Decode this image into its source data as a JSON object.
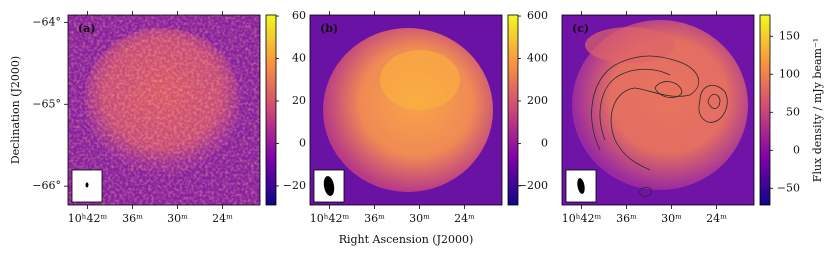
{
  "chart_data": [
    {
      "type": "image",
      "panel_label": "(a)",
      "xlim": [
        44.6,
        19.0
      ],
      "xticks": [
        {
          "value": 42,
          "label": "10ʰ42ᵐ"
        },
        {
          "value": 36,
          "label": "36ᵐ"
        },
        {
          "value": 30,
          "label": "30ᵐ"
        },
        {
          "value": 24,
          "label": "24ᵐ"
        }
      ],
      "ylim": [
        -66.23,
        -63.91
      ],
      "yticks": [
        {
          "value": -64,
          "label": "−64°"
        },
        {
          "value": -65,
          "label": "−65°"
        },
        {
          "value": -66,
          "label": "−66°"
        }
      ],
      "y_label": "Declination (J2000)",
      "clim": [
        -29,
        60.5
      ],
      "cticks": [
        {
          "value": -20,
          "label": "−20"
        },
        0,
        20,
        40,
        60
      ]
    },
    {
      "type": "image",
      "panel_label": "(b)",
      "xlim": [
        44.6,
        19.0
      ],
      "xticks": [
        {
          "value": 42,
          "label": "10ʰ42ᵐ"
        },
        {
          "value": 36,
          "label": "36ᵐ"
        },
        {
          "value": 30,
          "label": "30ᵐ"
        },
        {
          "value": 24,
          "label": "24ᵐ"
        }
      ],
      "x_label": "Right Ascension (J2000)",
      "clim": [
        -290,
        605
      ],
      "cticks": [
        {
          "value": -200,
          "label": "−200"
        },
        0,
        200,
        400,
        600
      ]
    },
    {
      "type": "image",
      "panel_label": "(c)",
      "xlim": [
        44.6,
        19.0
      ],
      "xticks": [
        {
          "value": 42,
          "label": "10ʰ42ᵐ"
        },
        {
          "value": 36,
          "label": "36ᵐ"
        },
        {
          "value": 30,
          "label": "30ᵐ"
        },
        {
          "value": 24,
          "label": "24ᵐ"
        }
      ],
      "clim": [
        -72,
        178
      ],
      "cticks": [
        {
          "value": -50,
          "label": "−50"
        },
        0,
        50,
        100,
        150
      ],
      "colorbar_label": "Flux density / mJy beam⁻¹"
    }
  ]
}
